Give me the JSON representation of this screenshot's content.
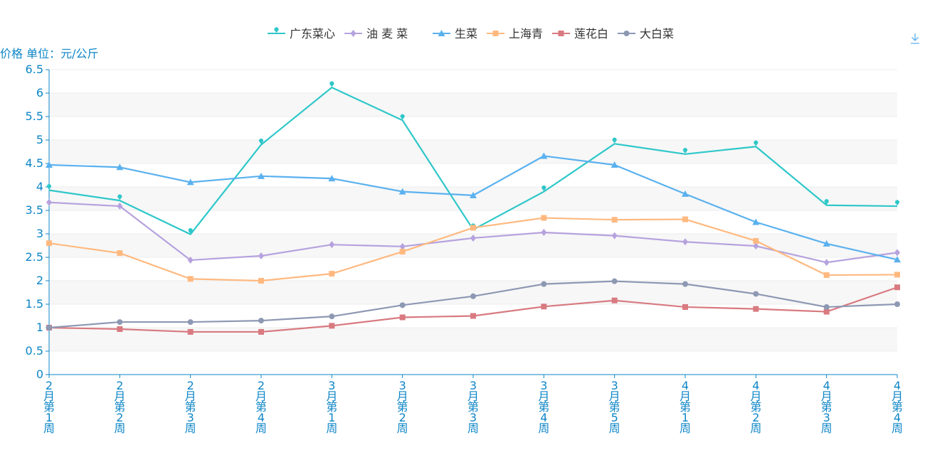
{
  "chart_data": {
    "type": "line",
    "ylabel": "价格 单位：元/公斤",
    "ylim": [
      0,
      6.5
    ],
    "y_ticks": [
      "0",
      "0.5",
      "1",
      "1.5",
      "2",
      "2.5",
      "3",
      "3.5",
      "4",
      "4.5",
      "5",
      "5.5",
      "6",
      "6.5"
    ],
    "categories": [
      "2月第1周",
      "2月第2周",
      "2月第3周",
      "2月第4周",
      "3月第1周",
      "3月第2周",
      "3月第3周",
      "3月第4周",
      "3月第5周",
      "4月第1周",
      "4月第2周",
      "4月第3周",
      "4月第4周"
    ],
    "grid": true,
    "legend_position": "top-center",
    "series": [
      {
        "name": "广东菜心",
        "color": "#2ec7c9",
        "marker": "pin",
        "values": [
          3.93,
          3.71,
          2.99,
          4.9,
          6.12,
          5.42,
          3.09,
          3.9,
          4.92,
          4.7,
          4.86,
          3.61,
          3.59
        ]
      },
      {
        "name": "油 麦 菜",
        "color": "#b6a2de",
        "marker": "diamond",
        "values": [
          3.67,
          3.59,
          2.44,
          2.53,
          2.77,
          2.73,
          2.91,
          3.03,
          2.96,
          2.83,
          2.74,
          2.39,
          2.6
        ]
      },
      {
        "name": "生菜",
        "color": "#5ab1ef",
        "marker": "triangle",
        "values": [
          4.47,
          4.42,
          4.1,
          4.23,
          4.18,
          3.9,
          3.82,
          4.66,
          4.47,
          3.85,
          3.25,
          2.79,
          2.45
        ]
      },
      {
        "name": "上海青",
        "color": "#ffb980",
        "marker": "square",
        "values": [
          2.8,
          2.59,
          2.04,
          2.0,
          2.15,
          2.62,
          3.13,
          3.34,
          3.3,
          3.31,
          2.85,
          2.12,
          2.13
        ]
      },
      {
        "name": "莲花白",
        "color": "#d87a80",
        "marker": "square",
        "values": [
          1.0,
          0.97,
          0.91,
          0.91,
          1.04,
          1.22,
          1.25,
          1.45,
          1.58,
          1.44,
          1.4,
          1.34,
          1.86
        ]
      },
      {
        "name": "大白菜",
        "color": "#8d98b3",
        "marker": "circle",
        "values": [
          1.0,
          1.12,
          1.12,
          1.15,
          1.24,
          1.48,
          1.67,
          1.93,
          1.99,
          1.93,
          1.72,
          1.44,
          1.5
        ]
      }
    ]
  },
  "toolbar": {
    "download_icon": "download-icon"
  }
}
